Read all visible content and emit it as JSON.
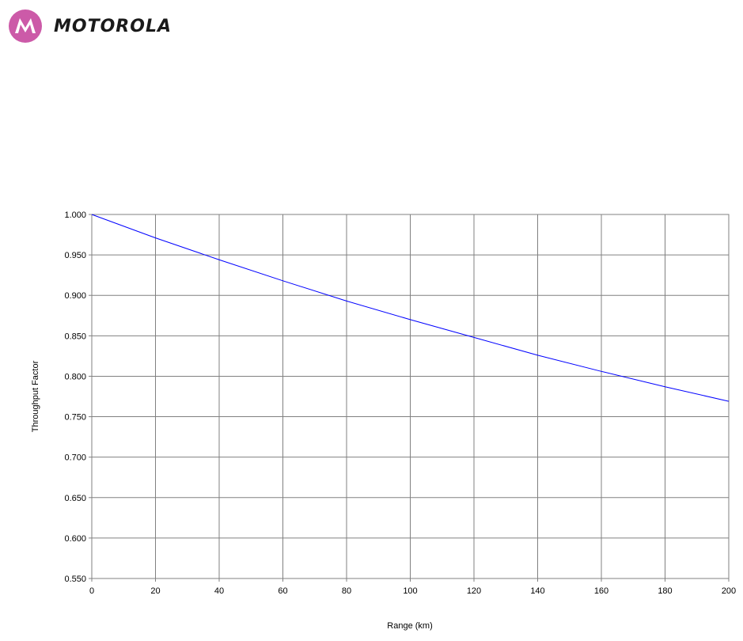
{
  "brand": {
    "name": "MOTOROLA",
    "logo_icon": "motorola-batwing-icon",
    "logo_color": "#cc5aa8"
  },
  "chart_data": {
    "type": "line",
    "title": "",
    "xlabel": "Range (km)",
    "ylabel": "Throughput Factor",
    "xlim": [
      0,
      200
    ],
    "ylim": [
      0.55,
      1.0
    ],
    "grid": true,
    "legend": "none",
    "x_ticks": [
      "0",
      "20",
      "40",
      "60",
      "80",
      "100",
      "120",
      "140",
      "160",
      "180",
      "200"
    ],
    "y_ticks": [
      "0.550",
      "0.600",
      "0.650",
      "0.700",
      "0.750",
      "0.800",
      "0.850",
      "0.900",
      "0.950",
      "1.000"
    ],
    "series": [
      {
        "color": "#0000ff",
        "x": [
          0,
          20,
          40,
          60,
          80,
          100,
          120,
          140,
          160,
          180,
          200
        ],
        "y": [
          1.0,
          0.971,
          0.944,
          0.918,
          0.893,
          0.87,
          0.848,
          0.826,
          0.806,
          0.787,
          0.769
        ]
      }
    ]
  }
}
